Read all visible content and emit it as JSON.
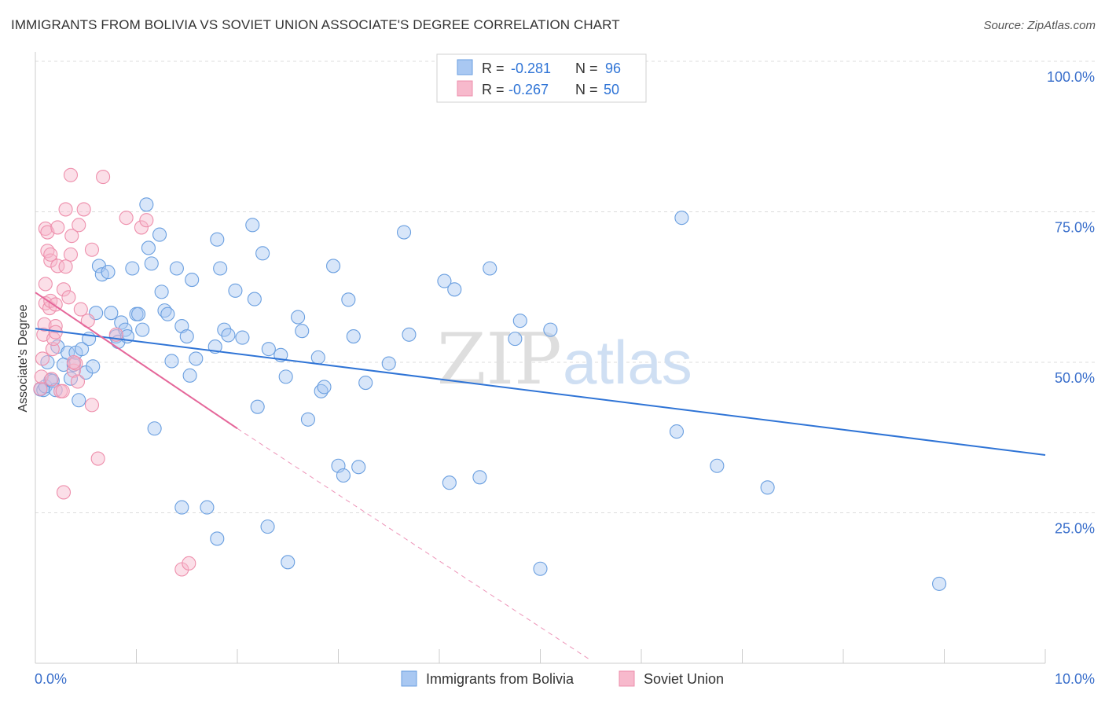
{
  "title": "IMMIGRANTS FROM BOLIVIA VS SOVIET UNION ASSOCIATE'S DEGREE CORRELATION CHART",
  "source": "Source: ZipAtlas.com",
  "watermark": {
    "zip": "ZIP",
    "atlas": "atlas"
  },
  "legend": {
    "rows": [
      {
        "r_label": "R =",
        "r_value": "-0.281",
        "n_label": "N =",
        "n_value": "96"
      },
      {
        "r_label": "R =",
        "r_value": "-0.267",
        "n_label": "N =",
        "n_value": "50"
      }
    ]
  },
  "chart_data": {
    "type": "scatter",
    "title": "IMMIGRANTS FROM BOLIVIA VS SOVIET UNION ASSOCIATE'S DEGREE CORRELATION CHART",
    "xlabel": "",
    "ylabel": "Associate's Degree",
    "xlim": [
      0,
      10
    ],
    "ylim": [
      0,
      100
    ],
    "x_tick_labels": [
      "0.0%",
      "10.0%"
    ],
    "y_tick_labels": [
      "25.0%",
      "50.0%",
      "75.0%",
      "100.0%"
    ],
    "y_ticks": [
      25,
      50,
      75,
      100
    ],
    "grid": true,
    "legend_position": "top-center",
    "colors": {
      "bolivia_fill": "#a9c8f2",
      "bolivia_stroke": "#6a9fe0",
      "bolivia_line": "#2f74d6",
      "soviet_fill": "#f7b9cc",
      "soviet_stroke": "#ee8fac",
      "soviet_line": "#e5679a",
      "tick_label": "#3a6fcb"
    },
    "series": [
      {
        "name": "Immigrants from Bolivia",
        "r": -0.281,
        "n": 96,
        "trend": {
          "x0": 0.0,
          "y0": 55.6,
          "x1": 10.0,
          "y1": 34.6
        },
        "points": [
          [
            0.05,
            45.5
          ],
          [
            0.08,
            45.4
          ],
          [
            0.1,
            46.0
          ],
          [
            0.12,
            50.0
          ],
          [
            0.15,
            47.0
          ],
          [
            0.17,
            46.9
          ],
          [
            0.2,
            45.4
          ],
          [
            0.22,
            52.6
          ],
          [
            0.28,
            49.6
          ],
          [
            0.32,
            51.6
          ],
          [
            0.35,
            47.3
          ],
          [
            0.38,
            49.6
          ],
          [
            0.4,
            51.6
          ],
          [
            0.43,
            43.7
          ],
          [
            0.46,
            52.2
          ],
          [
            0.5,
            48.3
          ],
          [
            0.53,
            53.9
          ],
          [
            0.57,
            49.3
          ],
          [
            0.6,
            58.2
          ],
          [
            0.63,
            66.0
          ],
          [
            0.66,
            64.6
          ],
          [
            0.72,
            65.0
          ],
          [
            0.75,
            58.2
          ],
          [
            0.8,
            54.3
          ],
          [
            0.82,
            53.4
          ],
          [
            0.85,
            56.6
          ],
          [
            0.89,
            55.4
          ],
          [
            0.91,
            54.3
          ],
          [
            0.96,
            65.6
          ],
          [
            1.0,
            58.0
          ],
          [
            1.02,
            58.0
          ],
          [
            1.06,
            55.4
          ],
          [
            1.1,
            76.2
          ],
          [
            1.12,
            69.0
          ],
          [
            1.15,
            66.4
          ],
          [
            1.18,
            39.0
          ],
          [
            1.23,
            71.2
          ],
          [
            1.25,
            61.7
          ],
          [
            1.28,
            58.6
          ],
          [
            1.31,
            58.0
          ],
          [
            1.35,
            50.2
          ],
          [
            1.4,
            65.6
          ],
          [
            1.45,
            56.0
          ],
          [
            1.5,
            54.3
          ],
          [
            1.53,
            47.8
          ],
          [
            1.55,
            63.7
          ],
          [
            1.59,
            50.6
          ],
          [
            1.78,
            52.6
          ],
          [
            1.8,
            70.4
          ],
          [
            1.83,
            65.6
          ],
          [
            1.87,
            55.4
          ],
          [
            1.91,
            54.5
          ],
          [
            1.98,
            61.9
          ],
          [
            2.05,
            54.1
          ],
          [
            2.15,
            72.8
          ],
          [
            2.17,
            60.5
          ],
          [
            2.25,
            68.1
          ],
          [
            2.31,
            52.2
          ],
          [
            2.43,
            51.2
          ],
          [
            2.48,
            47.6
          ],
          [
            2.6,
            57.5
          ],
          [
            2.64,
            55.2
          ],
          [
            2.7,
            40.5
          ],
          [
            2.8,
            50.8
          ],
          [
            2.83,
            45.2
          ],
          [
            2.86,
            45.9
          ],
          [
            2.95,
            66.0
          ],
          [
            3.1,
            60.4
          ],
          [
            3.15,
            54.3
          ],
          [
            3.27,
            46.6
          ],
          [
            3.5,
            49.8
          ],
          [
            3.7,
            54.6
          ],
          [
            3.65,
            71.6
          ],
          [
            4.05,
            63.5
          ],
          [
            4.15,
            62.1
          ],
          [
            4.5,
            65.6
          ],
          [
            4.75,
            53.9
          ],
          [
            4.8,
            56.9
          ],
          [
            5.1,
            55.4
          ],
          [
            6.4,
            74.0
          ],
          [
            6.35,
            38.5
          ],
          [
            6.75,
            32.8
          ],
          [
            7.25,
            29.2
          ],
          [
            8.95,
            13.2
          ],
          [
            1.45,
            25.9
          ],
          [
            1.7,
            25.9
          ],
          [
            1.8,
            20.7
          ],
          [
            2.2,
            42.6
          ],
          [
            2.3,
            22.7
          ],
          [
            2.5,
            16.8
          ],
          [
            3.0,
            32.8
          ],
          [
            3.05,
            31.2
          ],
          [
            3.2,
            32.6
          ],
          [
            4.1,
            30.0
          ],
          [
            4.4,
            30.9
          ],
          [
            5.0,
            15.7
          ]
        ]
      },
      {
        "name": "Soviet Union",
        "r": -0.267,
        "n": 50,
        "trend": {
          "x0": 0.0,
          "y0": 61.6,
          "x1": 2.0,
          "y1": 39.0
        },
        "trend_dashed": {
          "x0": 2.0,
          "y0": 39.0,
          "x1": 5.5,
          "y1": 0.5
        },
        "points": [
          [
            0.05,
            45.6
          ],
          [
            0.06,
            47.6
          ],
          [
            0.07,
            50.6
          ],
          [
            0.08,
            54.6
          ],
          [
            0.09,
            56.3
          ],
          [
            0.1,
            59.8
          ],
          [
            0.1,
            63.0
          ],
          [
            0.12,
            68.5
          ],
          [
            0.1,
            72.2
          ],
          [
            0.12,
            71.6
          ],
          [
            0.15,
            66.9
          ],
          [
            0.15,
            67.9
          ],
          [
            0.14,
            59.0
          ],
          [
            0.15,
            60.2
          ],
          [
            0.17,
            52.2
          ],
          [
            0.18,
            53.9
          ],
          [
            0.2,
            59.6
          ],
          [
            0.2,
            56.0
          ],
          [
            0.2,
            55.0
          ],
          [
            0.22,
            66.0
          ],
          [
            0.22,
            72.4
          ],
          [
            0.25,
            45.2
          ],
          [
            0.28,
            62.1
          ],
          [
            0.3,
            65.9
          ],
          [
            0.33,
            60.8
          ],
          [
            0.35,
            67.9
          ],
          [
            0.36,
            71.0
          ],
          [
            0.38,
            48.6
          ],
          [
            0.4,
            49.8
          ],
          [
            0.42,
            46.8
          ],
          [
            0.45,
            58.8
          ],
          [
            0.48,
            75.4
          ],
          [
            0.3,
            75.4
          ],
          [
            0.35,
            81.1
          ],
          [
            0.52,
            56.9
          ],
          [
            0.56,
            42.9
          ],
          [
            0.56,
            68.7
          ],
          [
            0.62,
            34.0
          ],
          [
            0.67,
            80.8
          ],
          [
            0.9,
            74.0
          ],
          [
            1.05,
            72.4
          ],
          [
            1.1,
            73.6
          ],
          [
            0.8,
            54.6
          ],
          [
            0.28,
            28.4
          ],
          [
            1.45,
            15.6
          ],
          [
            1.52,
            16.6
          ],
          [
            0.16,
            47.2
          ],
          [
            0.27,
            45.2
          ],
          [
            0.43,
            72.8
          ],
          [
            0.38,
            50.0
          ]
        ]
      }
    ]
  }
}
